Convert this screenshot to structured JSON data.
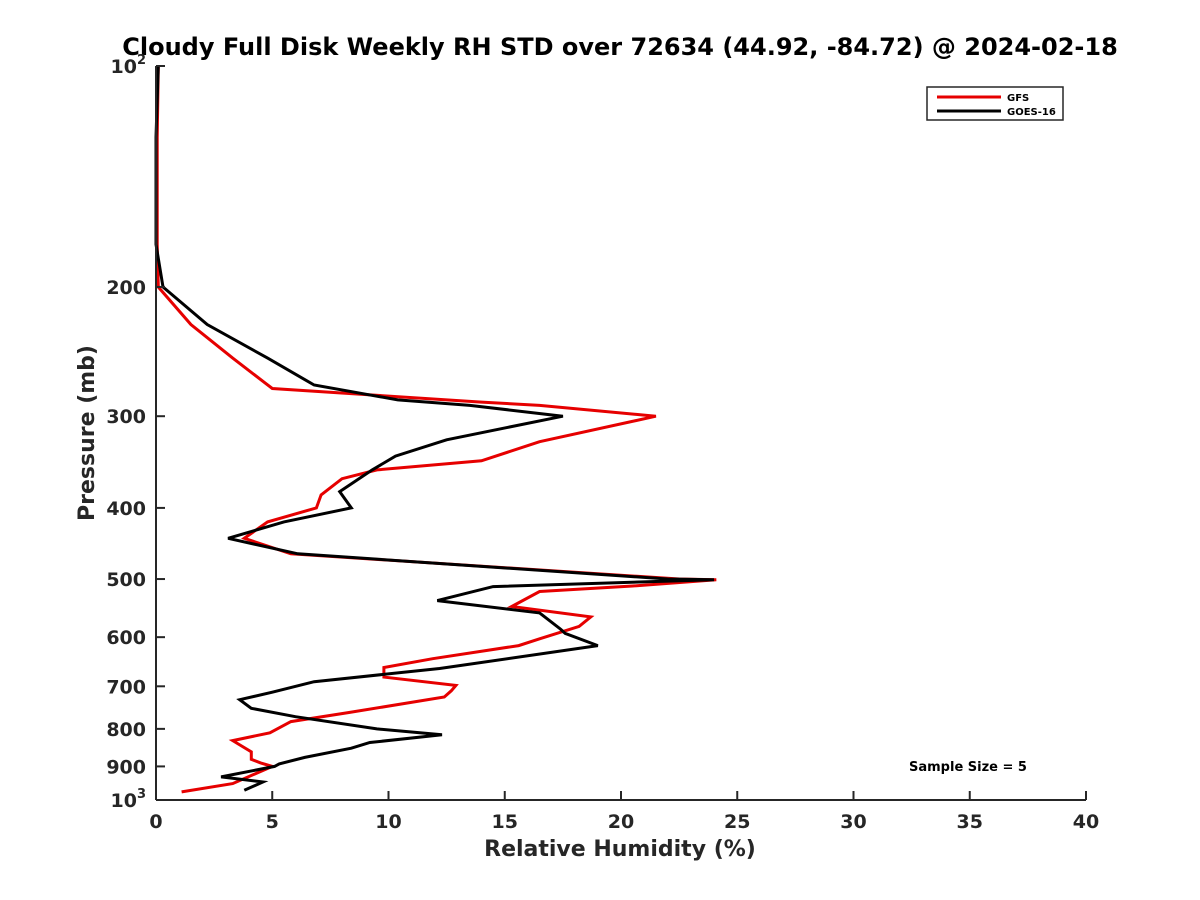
{
  "chart_data": {
    "type": "line",
    "title": "Cloudy Full Disk Weekly RH STD over 72634 (44.92, -84.72) @ 2024-02-18",
    "xlabel": "Relative Humidity (%)",
    "ylabel": "Pressure (mb)",
    "xlim": [
      0,
      40
    ],
    "ylim": [
      100,
      1000
    ],
    "y_scale": "log",
    "y_inverted": true,
    "grid": false,
    "legend_position": "top-right",
    "x_ticks": [
      "0",
      "5",
      "10",
      "15",
      "20",
      "25",
      "30",
      "35",
      "40"
    ],
    "y_ticks": [
      {
        "value": 100,
        "base": "10",
        "exp": "2"
      },
      {
        "value": 200,
        "label": "200"
      },
      {
        "value": 300,
        "label": "300"
      },
      {
        "value": 400,
        "label": "400"
      },
      {
        "value": 500,
        "label": "500"
      },
      {
        "value": 600,
        "label": "600"
      },
      {
        "value": 700,
        "label": "700"
      },
      {
        "value": 800,
        "label": "800"
      },
      {
        "value": 900,
        "label": "900"
      },
      {
        "value": 1000,
        "base": "10",
        "exp": "3"
      }
    ],
    "annotation": "Sample Size = 5",
    "series": [
      {
        "name": "GFS",
        "color": "#e60000",
        "points": [
          [
            0.1,
            100
          ],
          [
            0.05,
            125
          ],
          [
            0.05,
            150
          ],
          [
            0.05,
            175
          ],
          [
            0.1,
            200
          ],
          [
            1.5,
            225
          ],
          [
            3.3,
            250
          ],
          [
            5.0,
            275
          ],
          [
            14.0,
            287
          ],
          [
            16.5,
            290
          ],
          [
            21.5,
            300
          ],
          [
            16.5,
            325
          ],
          [
            14.0,
            345
          ],
          [
            9.5,
            355
          ],
          [
            8.0,
            365
          ],
          [
            7.1,
            384
          ],
          [
            6.9,
            400
          ],
          [
            4.8,
            418
          ],
          [
            3.8,
            440
          ],
          [
            5.8,
            462
          ],
          [
            22.5,
            500
          ],
          [
            24.1,
            501
          ],
          [
            20.5,
            511
          ],
          [
            16.5,
            520
          ],
          [
            15.3,
            545
          ],
          [
            18.7,
            563
          ],
          [
            18.2,
            580
          ],
          [
            16.5,
            603
          ],
          [
            15.6,
            616
          ],
          [
            11.9,
            642
          ],
          [
            9.8,
            660
          ],
          [
            9.8,
            680
          ],
          [
            12.9,
            698
          ],
          [
            12.7,
            710
          ],
          [
            12.4,
            724
          ],
          [
            8.3,
            760
          ],
          [
            5.8,
            782
          ],
          [
            4.9,
            810
          ],
          [
            3.3,
            830
          ],
          [
            4.1,
            860
          ],
          [
            4.1,
            880
          ],
          [
            4.5,
            890
          ],
          [
            5.0,
            900
          ],
          [
            3.3,
            950
          ],
          [
            1.1,
            975
          ]
        ]
      },
      {
        "name": "GOES-16",
        "color": "#000000",
        "points": [
          [
            0.1,
            100
          ],
          [
            0.0,
            125
          ],
          [
            0.0,
            150
          ],
          [
            0.0,
            175
          ],
          [
            0.3,
            200
          ],
          [
            2.2,
            225
          ],
          [
            4.8,
            250
          ],
          [
            6.8,
            272
          ],
          [
            10.4,
            285
          ],
          [
            13.5,
            290
          ],
          [
            17.5,
            300
          ],
          [
            12.5,
            323
          ],
          [
            10.3,
            340
          ],
          [
            9.3,
            355
          ],
          [
            7.9,
            380
          ],
          [
            8.4,
            400
          ],
          [
            5.5,
            418
          ],
          [
            3.1,
            440
          ],
          [
            6.1,
            462
          ],
          [
            22.0,
            500
          ],
          [
            24.0,
            501
          ],
          [
            14.5,
            512
          ],
          [
            12.1,
            535
          ],
          [
            16.5,
            556
          ],
          [
            17.4,
            585
          ],
          [
            17.6,
            593
          ],
          [
            19.0,
            616
          ],
          [
            12.2,
            662
          ],
          [
            6.8,
            690
          ],
          [
            5.0,
            713
          ],
          [
            3.6,
            730
          ],
          [
            4.1,
            750
          ],
          [
            6.0,
            770
          ],
          [
            9.5,
            800
          ],
          [
            12.3,
            815
          ],
          [
            9.2,
            835
          ],
          [
            8.4,
            850
          ],
          [
            6.4,
            875
          ],
          [
            5.3,
            893
          ],
          [
            5.1,
            900
          ],
          [
            2.8,
            930
          ],
          [
            4.6,
            945
          ],
          [
            3.8,
            970
          ]
        ]
      }
    ]
  }
}
